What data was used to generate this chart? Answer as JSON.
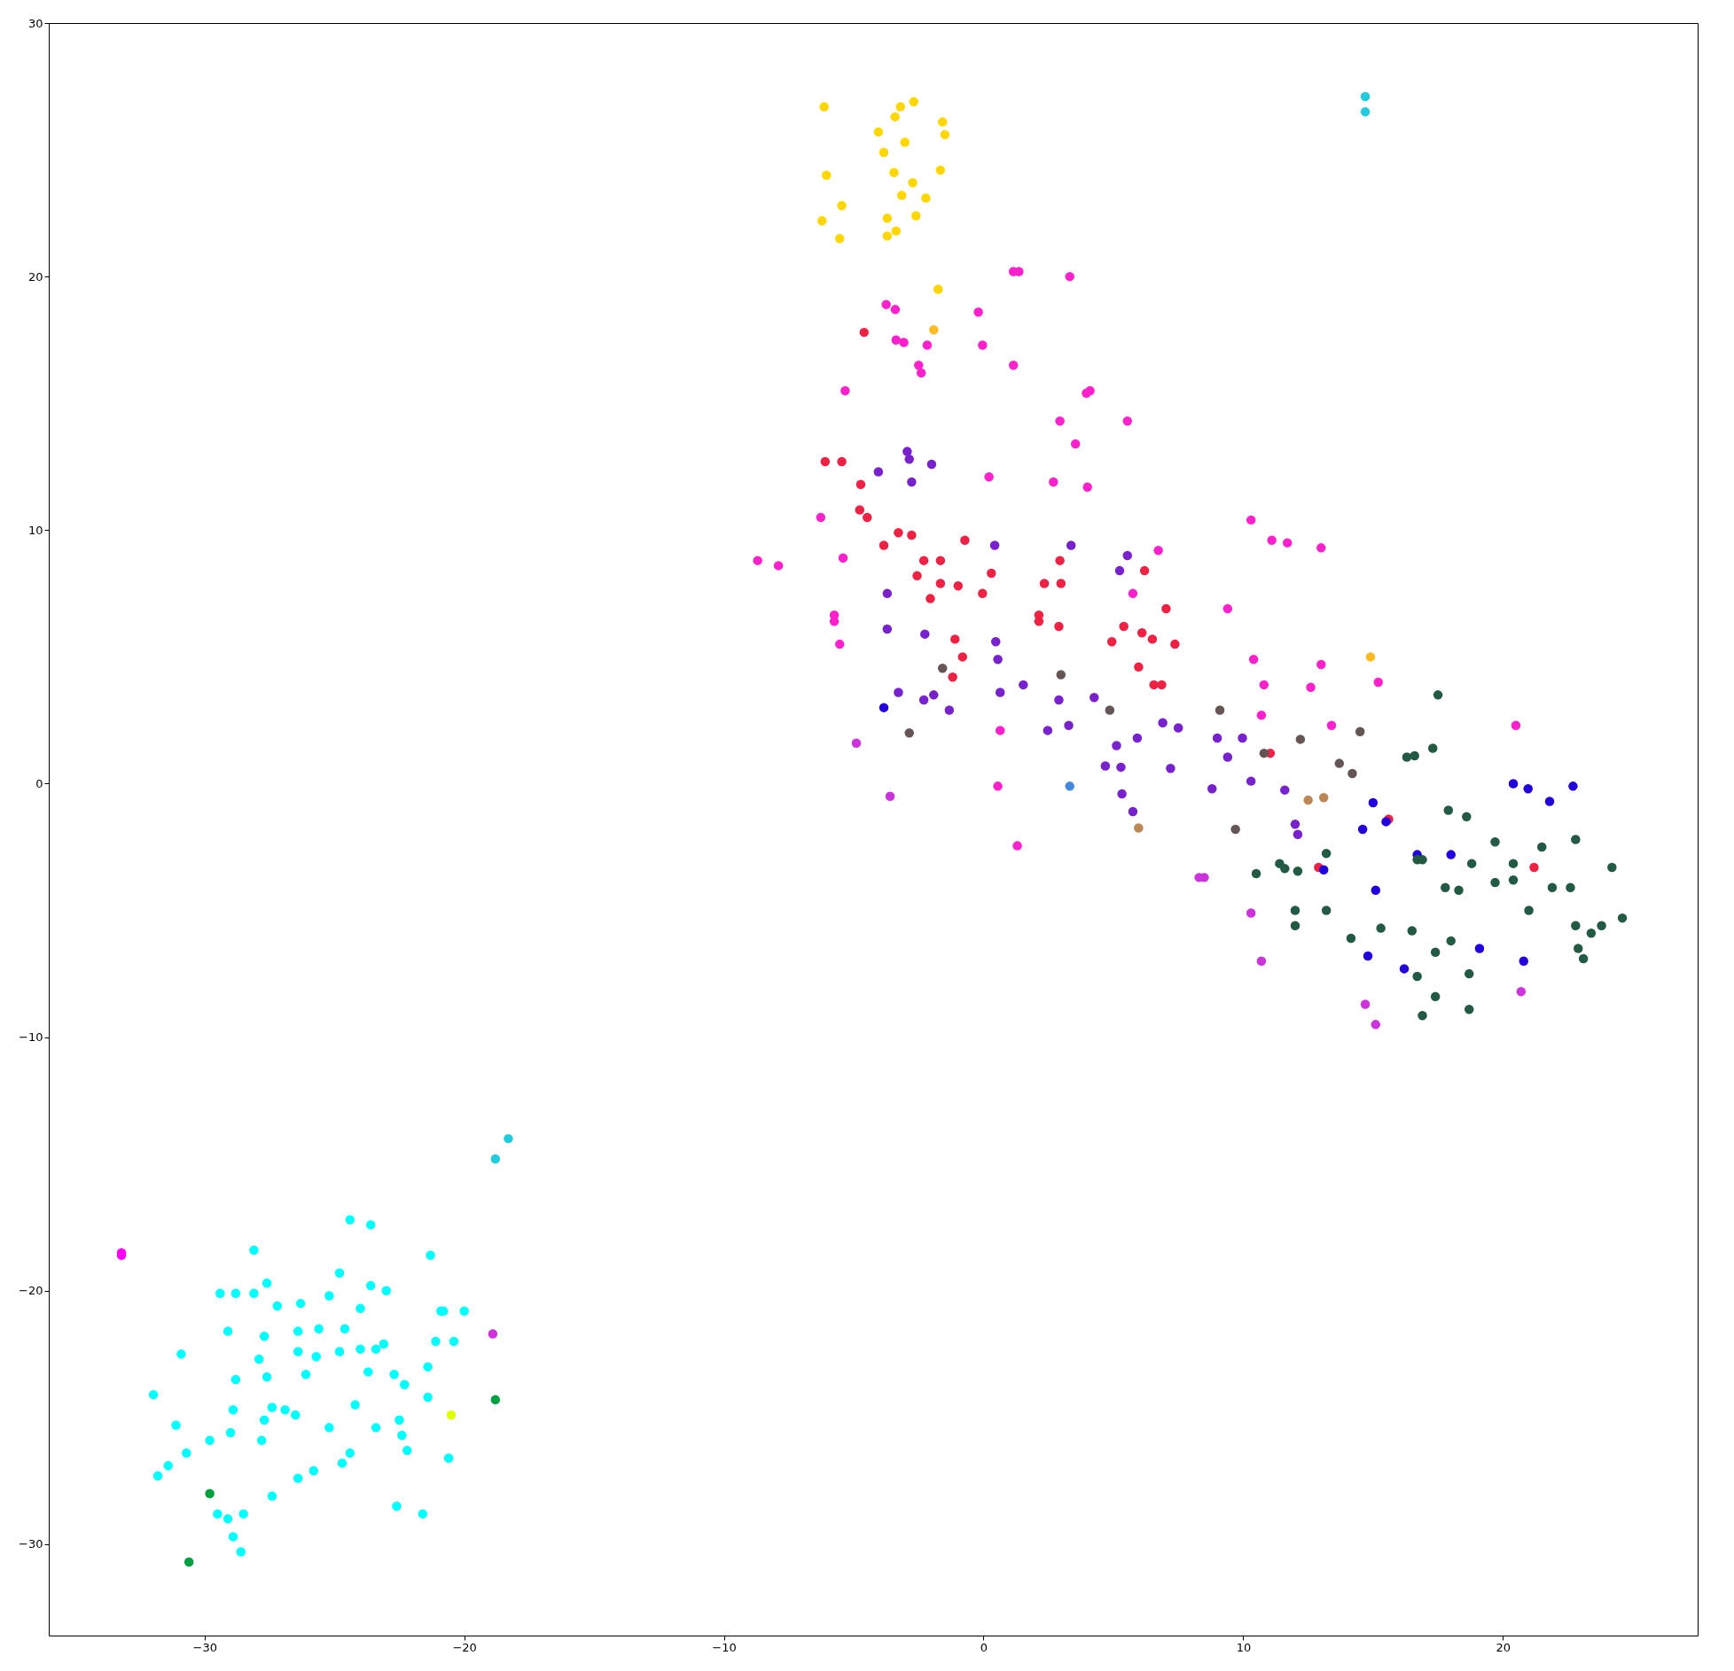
{
  "chart_data": {
    "type": "scatter",
    "marker": "circle",
    "xlim": [
      -36,
      27.5
    ],
    "ylim": [
      -33.6,
      30
    ],
    "xticks": [
      -30,
      -20,
      -10,
      0,
      10,
      20
    ],
    "yticks": [
      -30,
      -20,
      -10,
      0,
      10,
      20,
      30
    ],
    "grid": false,
    "series": [
      {
        "color": "#00ffff",
        "x": [
          -31.97,
          -30.9,
          -31.1,
          -31.4,
          -31.8,
          -30.7,
          -29.8,
          -29.4,
          -28.8,
          -29.1,
          -28.8,
          -28.9,
          -29,
          -29.5,
          -29.1,
          -28.9,
          -28.6,
          -28.5,
          -28.1,
          -28.1,
          -27.9,
          -27.7,
          -27.8,
          -27.6,
          -27.6,
          -27.7,
          -27.4,
          -27.4,
          -27.2,
          -26.9,
          -26.5,
          -26.4,
          -26.4,
          -26.3,
          -26.4,
          -26.1,
          -25.8,
          -25.7,
          -25.6,
          -25.2,
          -25.2,
          -24.8,
          -24.8,
          -24.7,
          -24.6,
          -24.4,
          -24.4,
          -24.2,
          -24,
          -24,
          -23.7,
          -23.6,
          -23.6,
          -23.4,
          -23.4,
          -23.1,
          -23,
          -22.7,
          -22.6,
          -22.5,
          -22.4,
          -22.3,
          -22.2,
          -21.6,
          -21.4,
          -21.4,
          -21.3,
          -21.1,
          -20.9,
          -20.8,
          -20.6,
          -20.4,
          -20
        ],
        "values": [
          -24.1,
          -22.5,
          -25.3,
          -26.9,
          -27.3,
          -26.4,
          -25.9,
          -20.1,
          -20.1,
          -21.6,
          -23.5,
          -24.7,
          -25.6,
          -28.8,
          -29,
          -29.7,
          -30.3,
          -28.8,
          -18.4,
          -20.1,
          -22.7,
          -25.1,
          -25.9,
          -19.7,
          -23.4,
          -21.8,
          -24.6,
          -28.1,
          -20.6,
          -24.7,
          -24.9,
          -27.4,
          -21.6,
          -20.5,
          -22.4,
          -23.3,
          -27.1,
          -22.6,
          -21.5,
          -25.4,
          -20.2,
          -22.4,
          -19.3,
          -26.8,
          -21.5,
          -17.2,
          -26.4,
          -24.5,
          -20.7,
          -22.3,
          -23.2,
          -19.8,
          -17.4,
          -25.4,
          -22.3,
          -22.1,
          -20,
          -23.3,
          -28.5,
          -25.1,
          -25.7,
          -23.7,
          -26.3,
          -28.8,
          -23,
          -24.2,
          -18.6,
          -22,
          -20.8,
          -20.8,
          -26.6,
          -22,
          -20.8
        ]
      },
      {
        "color": "#22ccdd",
        "x": [
          -18.8,
          -18.3,
          14.7,
          14.7
        ],
        "values": [
          -14.8,
          -14,
          27.1,
          26.5
        ]
      },
      {
        "color": "#ff00ff",
        "x": [
          -33.2,
          -33.2
        ],
        "values": [
          -18.5,
          -18.6
        ]
      },
      {
        "color": "#00a040",
        "x": [
          -29.8,
          -30.6,
          -18.8
        ],
        "values": [
          -28,
          -30.7,
          -24.3
        ]
      },
      {
        "color": "#ddff00",
        "x": [
          -20.5
        ],
        "values": [
          -24.9
        ]
      },
      {
        "color": "#ffd700",
        "x": [
          -6.14,
          -3.41,
          -3.2,
          -2.69,
          -4.05,
          -1.58,
          -1.49,
          -3.84,
          -3.03,
          -6.05,
          -3.45,
          -1.66,
          -5.46,
          -2.73,
          -3.71,
          -3.15,
          -2.22,
          -6.22,
          -2.6,
          -5.54,
          -3.37,
          -3.71,
          -1.75
        ],
        "values": [
          26.7,
          26.3,
          26.7,
          26.9,
          25.7,
          26.1,
          25.6,
          24.9,
          25.3,
          24,
          24.1,
          24.2,
          22.8,
          23.7,
          22.3,
          23.2,
          23.1,
          22.2,
          22.4,
          21.5,
          21.8,
          21.6,
          19.5
        ]
      },
      {
        "color": "#ffbb22",
        "x": [
          -1.92,
          14.9
        ],
        "values": [
          17.9,
          5
        ]
      },
      {
        "color": "#ff22cc",
        "x": [
          -3.75,
          -3.4,
          -3.37,
          -3.07,
          -2.17,
          -2.5,
          -2.4,
          -0.2,
          -0.04,
          1.15,
          1.36,
          3.32,
          1.15,
          5.54,
          2.94,
          3.54,
          3.96,
          4.1,
          4,
          2.69,
          0.21,
          -5.33,
          -6.27,
          -5.41,
          -8.7,
          -7.9,
          -5.75,
          -5.75,
          -5.54,
          10.3,
          11.1,
          11.7,
          13,
          6.73,
          10.4,
          13,
          10.8,
          12.6,
          15.2,
          10.7,
          13.4,
          20.5,
          5.75,
          9.4,
          1.3,
          0.55,
          0.64
        ],
        "values": [
          18.9,
          18.7,
          17.5,
          17.4,
          17.3,
          16.5,
          16.2,
          18.6,
          17.3,
          20.2,
          20.2,
          20,
          16.5,
          14.3,
          14.3,
          13.4,
          15.4,
          15.5,
          11.7,
          11.9,
          12.1,
          15.5,
          10.5,
          8.9,
          8.8,
          8.6,
          6.65,
          6.4,
          5.5,
          10.4,
          9.6,
          9.5,
          9.3,
          9.2,
          4.9,
          4.7,
          3.9,
          3.8,
          4,
          2.7,
          2.3,
          2.3,
          7.5,
          6.9,
          -2.45,
          -0.1,
          2.1
        ]
      },
      {
        "color": "#cc33dd",
        "x": [
          -4.9,
          -3.6,
          10.3,
          10.7,
          14.7,
          15.1,
          20.7,
          8.3,
          8.5,
          -18.9
        ],
        "values": [
          1.6,
          -0.5,
          -5.1,
          -7,
          -8.7,
          -9.5,
          -8.2,
          -3.7,
          -3.7,
          -21.7
        ]
      },
      {
        "color": "#ee2244",
        "x": [
          -4.6,
          -6.1,
          -5.46,
          -4.73,
          -4.77,
          -4.48,
          -3.28,
          -2.77,
          -3.84,
          -0.72,
          -2.3,
          -1.66,
          0.3,
          2.94,
          6.2,
          -2.56,
          -1.66,
          -0.98,
          -2.05,
          -0.04,
          2.34,
          2.98,
          7.03,
          2.13,
          2.13,
          2.9,
          5.4,
          6.1,
          6.5,
          7.37,
          4.94,
          -1.1,
          -0.81,
          -1.19,
          5.97,
          6.56,
          6.86,
          11.04,
          15.6,
          12.9,
          21.2
        ],
        "values": [
          17.8,
          12.7,
          12.7,
          11.8,
          10.8,
          10.5,
          9.9,
          9.8,
          9.4,
          9.6,
          8.8,
          8.8,
          8.3,
          8.8,
          8.4,
          8.2,
          7.9,
          7.8,
          7.3,
          7.5,
          7.9,
          7.9,
          6.9,
          6.65,
          6.4,
          6.2,
          6.2,
          5.95,
          5.7,
          5.5,
          5.6,
          5.7,
          5,
          4.2,
          4.6,
          3.9,
          3.9,
          1.2,
          -1.4,
          -3.3,
          -3.3
        ]
      },
      {
        "color": "#7722cc",
        "x": [
          -2.94,
          -2.86,
          -4.05,
          -2,
          -2.77,
          -3.71,
          -3.71,
          -2.26,
          0.43,
          3.37,
          5.54,
          5.24,
          0.47,
          0.55,
          -3.28,
          -1.92,
          -2.3,
          -1.32,
          1.53,
          0.64,
          4.26,
          2.9,
          3.28,
          2.47,
          5.92,
          5.12,
          5.29,
          4.69,
          6.9,
          7.5,
          7.2,
          5.33,
          5.75,
          9,
          9.97,
          9.4,
          8.8,
          10.3,
          11.6,
          12,
          12.1
        ],
        "values": [
          13.1,
          12.8,
          12.3,
          12.6,
          11.9,
          7.5,
          6.1,
          5.9,
          9.4,
          9.4,
          9,
          8.4,
          5.6,
          4.9,
          3.6,
          3.5,
          3.3,
          2.9,
          3.9,
          3.6,
          3.4,
          3.3,
          2.3,
          2.1,
          1.8,
          1.5,
          0.65,
          0.7,
          2.4,
          2.2,
          0.6,
          -0.4,
          -1.1,
          1.8,
          1.8,
          1.05,
          -0.2,
          0.1,
          -0.25,
          -1.6,
          -2
        ]
      },
      {
        "color": "#2200dd",
        "x": [
          -3.84,
          13.1,
          15,
          14.6,
          15.5,
          15.1,
          16.7,
          18,
          14.8,
          16.2,
          20.4,
          20.97,
          21.8,
          22.7,
          19.1,
          20.8
        ],
        "values": [
          3,
          -3.4,
          -0.75,
          -1.8,
          -1.5,
          -4.2,
          -2.8,
          -2.8,
          -6.8,
          -7.3,
          0,
          -0.2,
          -0.7,
          -0.1,
          -6.5,
          -7
        ]
      },
      {
        "color": "#4488dd",
        "x": [
          3.32
        ],
        "values": [
          -0.1
        ]
      },
      {
        "color": "#225a44",
        "x": [
          17.5,
          16.3,
          16.6,
          17.3,
          17.9,
          18.6,
          19.7,
          22.8,
          21.5,
          20.4,
          18.8,
          24.2,
          20.4,
          19.7,
          21.9,
          22.6,
          17.78,
          18.3,
          10.5,
          11.4,
          11.6,
          12.1,
          13.2,
          16.7,
          16.9,
          12,
          13.2,
          12,
          14.15,
          15.3,
          16.5,
          18,
          17.4,
          16.7,
          17.4,
          16.9,
          18.7,
          18.7,
          21,
          22.8,
          23.8,
          23.4,
          24.6,
          22.9,
          23.1
        ],
        "values": [
          3.5,
          1.05,
          1.1,
          1.4,
          -1.05,
          -1.3,
          -2.3,
          -2.2,
          -2.5,
          -3.15,
          -3.15,
          -3.3,
          -3.8,
          -3.9,
          -4.1,
          -4.1,
          -4.1,
          -4.2,
          -3.55,
          -3.15,
          -3.35,
          -3.45,
          -2.75,
          -3,
          -3,
          -5,
          -5,
          -5.6,
          -6.1,
          -5.7,
          -5.8,
          -6.2,
          -6.65,
          -7.6,
          -8.4,
          -9.15,
          -8.9,
          -7.5,
          -5,
          -5.6,
          -5.6,
          -5.9,
          -5.3,
          -6.5,
          -6.9
        ]
      },
      {
        "color": "#665555",
        "x": [
          -2.86,
          -1.58,
          2.98,
          4.86,
          9.1,
          12.2,
          14.5,
          13.7,
          14.2,
          10.8,
          9.7
        ],
        "values": [
          2,
          4.55,
          4.3,
          2.9,
          2.9,
          1.75,
          2.05,
          0.8,
          0.4,
          1.2,
          -1.8
        ]
      },
      {
        "color": "#bb8855",
        "x": [
          13.1,
          12.5,
          5.97
        ],
        "values": [
          -0.55,
          -0.65,
          -1.75
        ]
      }
    ]
  }
}
